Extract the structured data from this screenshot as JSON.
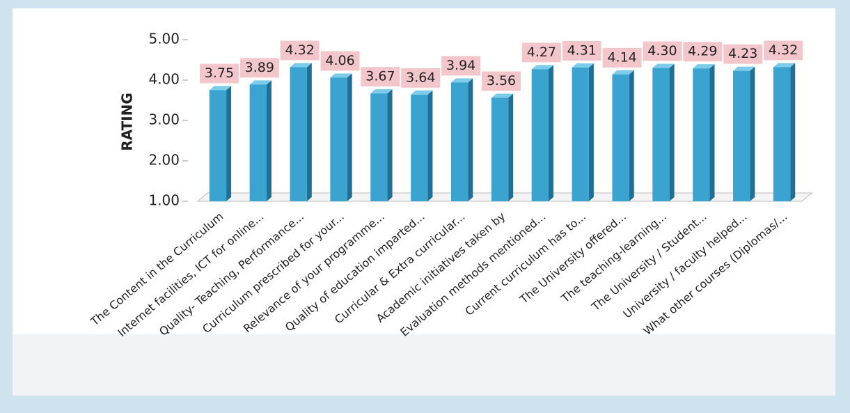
{
  "chart_data": {
    "type": "bar",
    "y_label": "RATING",
    "categories": [
      "The Content in the Curriculum",
      "Internet facilities, ICT for online...",
      "Quality- Teaching, Performance...",
      "Curriculum prescribed for your...",
      "Relevance of your programme...",
      "Quality of education imparted...",
      "Curricular & Extra curricular...",
      "Academic initiatives taken by",
      "Evaluation methods mentioned...",
      "Current curriculum has to...",
      "The University offered...",
      "The teaching-learning...",
      "The University / Student...",
      "University / faculty helped...",
      "What other courses (Diplomas/..."
    ],
    "values": [
      3.75,
      3.89,
      4.32,
      4.06,
      3.67,
      3.64,
      3.94,
      3.56,
      4.27,
      4.31,
      4.14,
      4.3,
      4.29,
      4.23,
      4.32
    ],
    "value_labels": [
      "3.75",
      "3.89",
      "4.32",
      "4.06",
      "3.67",
      "3.64",
      "3.94",
      "3.56",
      "4.27",
      "4.31",
      "4.14",
      "4.30",
      "4.29",
      "4.23",
      "4.32"
    ],
    "color": "#3ba3d0",
    "ylim": [
      1,
      5
    ],
    "yticks": [
      {
        "value": 1,
        "label": "1.00"
      },
      {
        "value": 2,
        "label": "2.00"
      },
      {
        "value": 3,
        "label": "3.00"
      },
      {
        "value": 4,
        "label": "4.00"
      },
      {
        "value": 5,
        "label": "5.00"
      }
    ]
  }
}
